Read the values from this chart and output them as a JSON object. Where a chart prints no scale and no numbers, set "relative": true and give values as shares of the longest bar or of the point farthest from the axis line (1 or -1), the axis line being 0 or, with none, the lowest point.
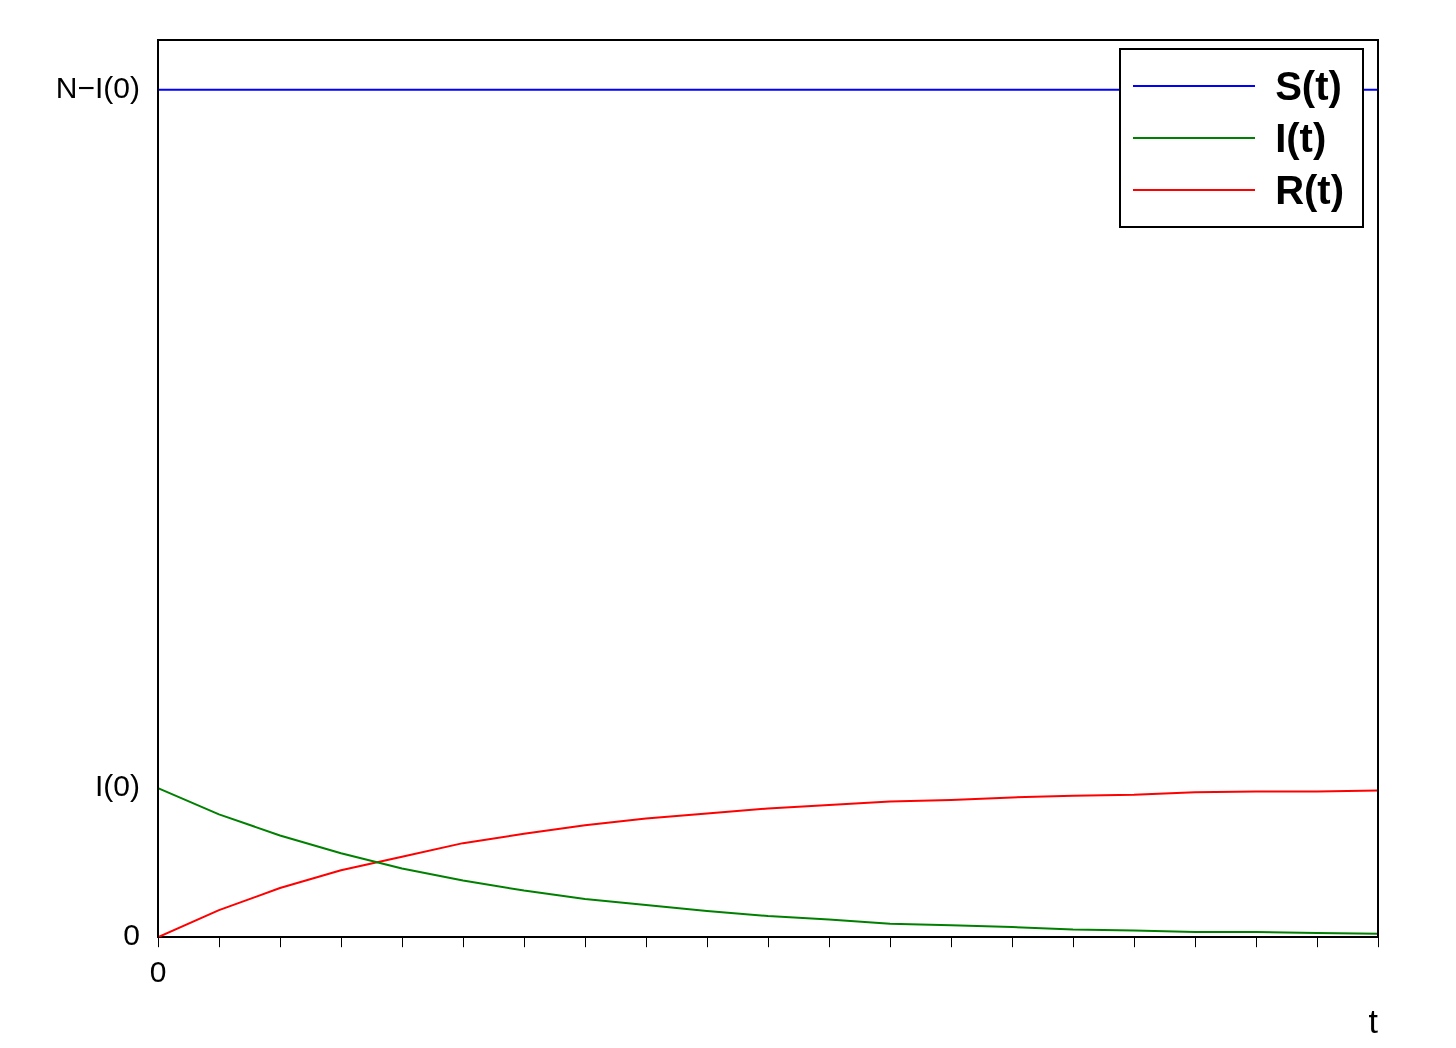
{
  "chart_data": {
    "type": "line",
    "xlabel": "t",
    "relative": true,
    "categories": [
      null,
      null,
      null,
      null,
      null,
      null,
      null,
      null,
      null,
      null,
      null,
      null,
      null,
      null,
      null,
      null,
      null,
      null,
      null,
      null,
      null
    ],
    "series": [
      {
        "name": "S(t)",
        "color": "#0000ff",
        "values": [
          1,
          1,
          1,
          1,
          1,
          1,
          1,
          1,
          1,
          1,
          1,
          1,
          1,
          1,
          1,
          1,
          null,
          null,
          null,
          null,
          1
        ]
      },
      {
        "name": "I(t)",
        "color": "#008000",
        "values": [
          0.176,
          0.145,
          0.12,
          0.099,
          0.081,
          0.067,
          0.055,
          0.045,
          0.038,
          0.031,
          0.025,
          0.021,
          0.016,
          0.014,
          0.012,
          0.009,
          0.008,
          0.006,
          0.006,
          0.005,
          0.004
        ]
      },
      {
        "name": "R(t)",
        "color": "#ff0000",
        "values": [
          0,
          0.032,
          0.058,
          0.079,
          0.095,
          0.111,
          0.122,
          0.132,
          0.14,
          0.146,
          0.152,
          0.156,
          0.16,
          0.162,
          0.165,
          0.167,
          0.168,
          0.171,
          0.172,
          0.172,
          0.173
        ]
      }
    ],
    "annotations": [
      "N−I(0)",
      "I(0)",
      "0",
      "0"
    ],
    "legend": "top right",
    "marker": "none",
    "line_style": "solid"
  }
}
